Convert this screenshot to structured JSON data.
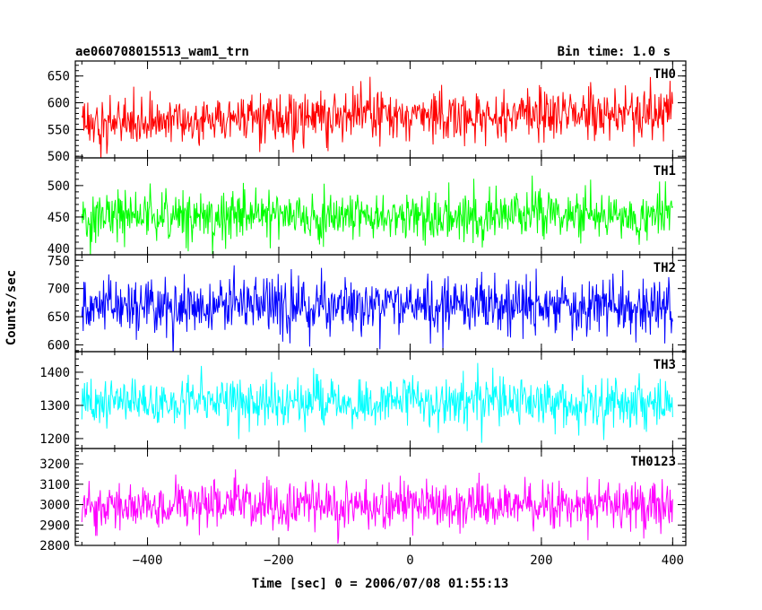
{
  "header": {
    "title": "ae060708015513_wam1_trn",
    "bin_time": "Bin time: 1.0 s"
  },
  "chart_data": {
    "type": "line",
    "title": "ae060708015513_wam1_trn",
    "subtitle": "Bin time: 1.0 s",
    "xlabel": "Time [sec] 0 = 2006/07/08 01:55:13",
    "ylabel": "Counts/sec",
    "xlim": [
      -510,
      420
    ],
    "x_range": [
      -500,
      400
    ],
    "x_step": 1,
    "x_ticks": [
      -400,
      -200,
      0,
      200,
      400
    ],
    "x_tick_labels": [
      "−400",
      "−200",
      "0",
      "200",
      "400"
    ],
    "grid": false,
    "panels": [
      {
        "name": "TH0",
        "color": "#ff0000",
        "ylim": [
          497,
          678
        ],
        "y_ticks": [
          500,
          550,
          600,
          650
        ],
        "trend": [
          560,
          572,
          578,
          584
        ],
        "noise_sd": 24,
        "mean": 572
      },
      {
        "name": "TH1",
        "color": "#00ff00",
        "ylim": [
          390,
          544
        ],
        "y_ticks": [
          400,
          450,
          500
        ],
        "trend": [
          452,
          452,
          452,
          452
        ],
        "noise_sd": 20,
        "mean": 452
      },
      {
        "name": "TH2",
        "color": "#0000ff",
        "ylim": [
          588,
          760
        ],
        "y_ticks": [
          600,
          650,
          700,
          750
        ],
        "trend": [
          668,
          668,
          668,
          668
        ],
        "noise_sd": 25,
        "mean": 668
      },
      {
        "name": "TH3",
        "color": "#00ffff",
        "ylim": [
          1170,
          1462
        ],
        "y_ticks": [
          1200,
          1300,
          1400
        ],
        "trend": [
          1310,
          1310,
          1310,
          1310
        ],
        "noise_sd": 37,
        "mean": 1310
      },
      {
        "name": "TH0123",
        "color": "#ff00ff",
        "ylim": [
          2800,
          3275
        ],
        "y_ticks": [
          2800,
          2900,
          3000,
          3100,
          3200
        ],
        "trend": [
          2990,
          2995,
          3000,
          2995
        ],
        "noise_sd": 58,
        "mean": 2995
      }
    ]
  }
}
